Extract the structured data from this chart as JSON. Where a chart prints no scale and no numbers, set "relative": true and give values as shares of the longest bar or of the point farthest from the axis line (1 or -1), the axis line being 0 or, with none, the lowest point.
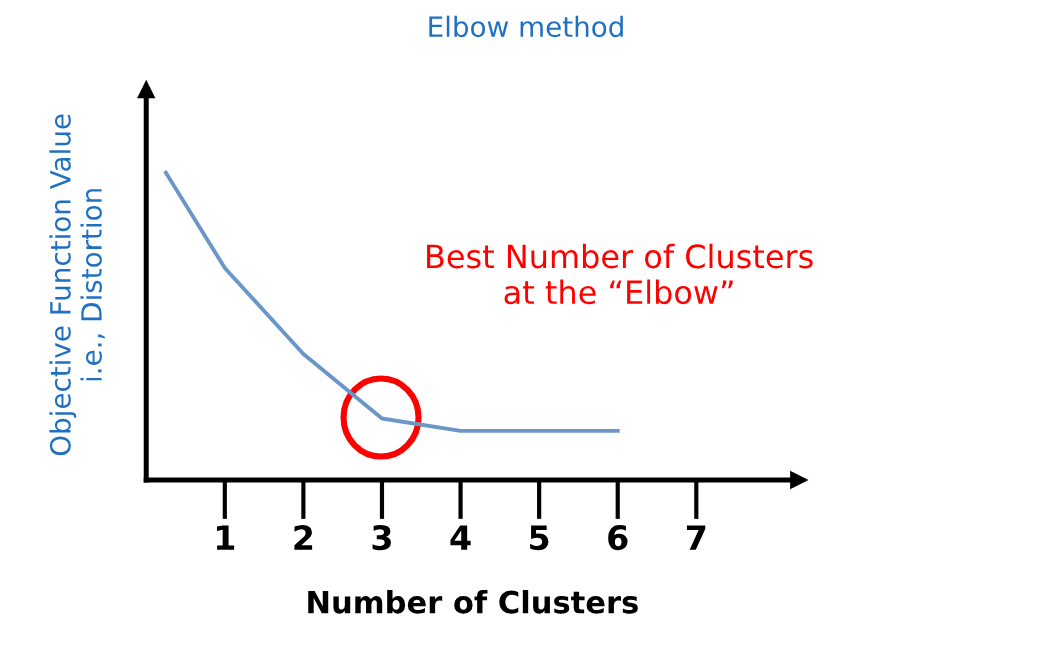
{
  "chart_data": {
    "type": "line",
    "title": "Elbow method",
    "xlabel": "Number of Clusters",
    "ylabel": "Objective Function Value\ni.e., Distortion",
    "relative": true,
    "xlim": [
      0,
      8.3
    ],
    "xticks": [
      1,
      2,
      3,
      4,
      5,
      6,
      7
    ],
    "grid": false,
    "legend": false,
    "marker": "none",
    "line_style": "solid",
    "annotations": [
      "Best Number of Clusters\nat the “Elbow”"
    ],
    "series": [
      {
        "color": "#6a97c8",
        "x": [
          0.25,
          1,
          2,
          3,
          4,
          6
        ],
        "values": [
          1,
          0.69,
          0.41,
          0.2,
          0.16,
          0.16
        ]
      }
    ]
  }
}
